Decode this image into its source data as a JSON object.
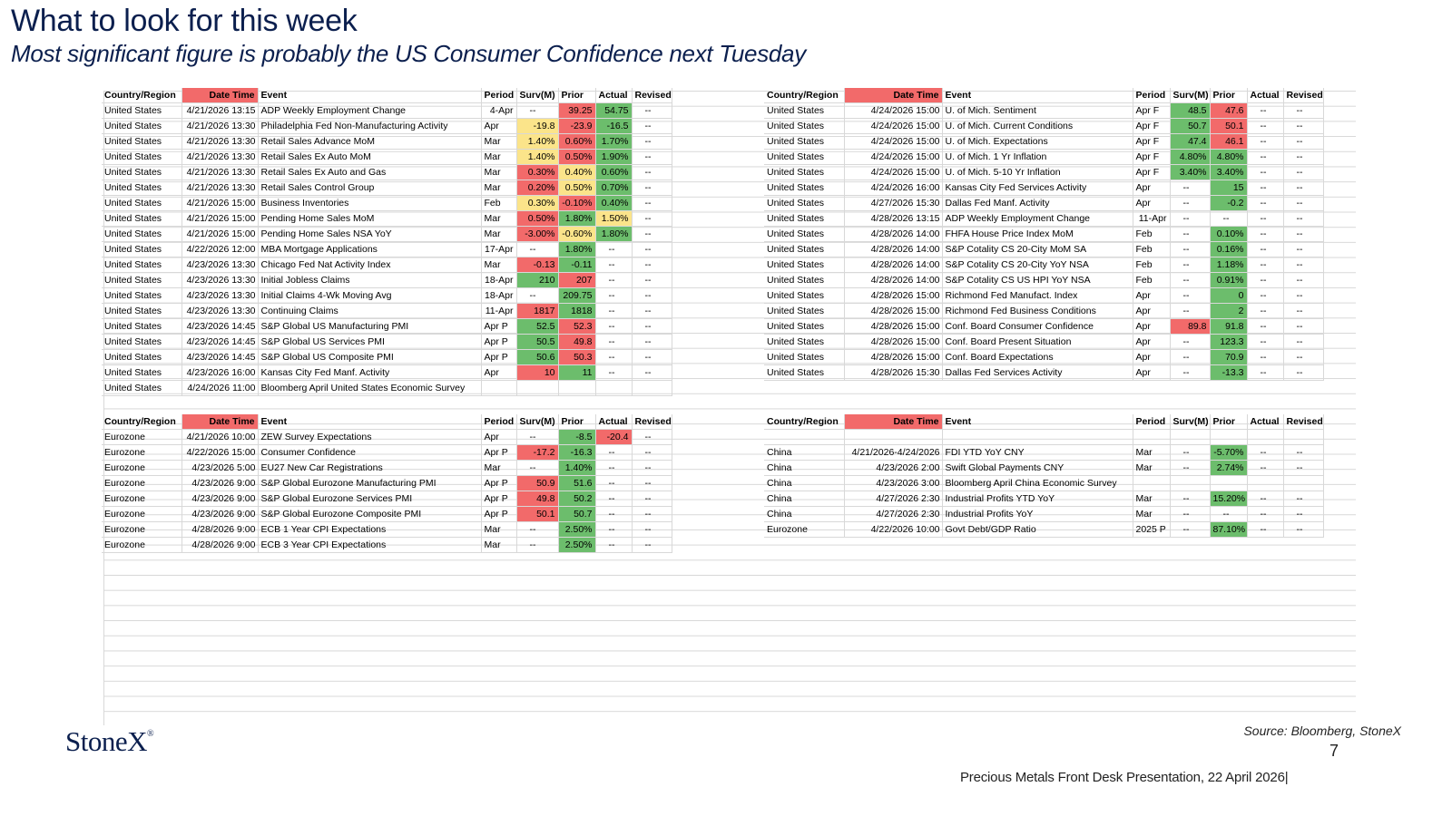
{
  "header": {
    "title": "What to look for this week",
    "subtitle": "Most significant figure is probably the US Consumer Confidence next Tuesday"
  },
  "columns": [
    "Country/Region",
    "Date Time",
    "Event",
    "Period",
    "Surv(M)",
    "Prior",
    "Actual",
    "Revised"
  ],
  "columns_right": [
    "Country/Region",
    "Date Time",
    "Event",
    "Period",
    "Surv(M)",
    "Prior",
    "Actual",
    "Revised"
  ],
  "colors": {
    "green": "#6cbd6c",
    "red": "#f26a6a",
    "yellow": "#fbe48a",
    "navy": "#0b1f4e"
  },
  "tables": {
    "top_left": [
      {
        "country": "United States",
        "dt": "4/21/2026 13:15",
        "event": "ADP Weekly Employment Change",
        "period": "4-Apr",
        "surv": "--",
        "prior": "39.25",
        "actual": "54.75",
        "revised": "--",
        "period_align": "right",
        "sc": "",
        "pc": "r",
        "ac": "g"
      },
      {
        "country": "United States",
        "dt": "4/21/2026 13:30",
        "event": "Philadelphia Fed Non-Manufacturing Activity",
        "period": "Apr",
        "surv": "-19.8",
        "prior": "-23.9",
        "actual": "-16.5",
        "revised": "--",
        "sc": "y",
        "pc": "r",
        "ac": "g"
      },
      {
        "country": "United States",
        "dt": "4/21/2026 13:30",
        "event": "Retail Sales Advance MoM",
        "period": "Mar",
        "surv": "1.40%",
        "prior": "0.60%",
        "actual": "1.70%",
        "revised": "--",
        "sc": "y",
        "pc": "r",
        "ac": "g"
      },
      {
        "country": "United States",
        "dt": "4/21/2026 13:30",
        "event": "Retail Sales Ex Auto MoM",
        "period": "Mar",
        "surv": "1.40%",
        "prior": "0.50%",
        "actual": "1.90%",
        "revised": "--",
        "sc": "y",
        "pc": "r",
        "ac": "g"
      },
      {
        "country": "United States",
        "dt": "4/21/2026 13:30",
        "event": "Retail Sales Ex Auto and Gas",
        "period": "Mar",
        "surv": "0.30%",
        "prior": "0.40%",
        "actual": "0.60%",
        "revised": "--",
        "sc": "r",
        "pc": "y",
        "ac": "g"
      },
      {
        "country": "United States",
        "dt": "4/21/2026 13:30",
        "event": "Retail Sales Control Group",
        "period": "Mar",
        "surv": "0.20%",
        "prior": "0.50%",
        "actual": "0.70%",
        "revised": "--",
        "sc": "r",
        "pc": "y",
        "ac": "g"
      },
      {
        "country": "United States",
        "dt": "4/21/2026 15:00",
        "event": "Business Inventories",
        "period": "Feb",
        "surv": "0.30%",
        "prior": "-0.10%",
        "actual": "0.40%",
        "revised": "--",
        "sc": "y",
        "pc": "r",
        "ac": "g"
      },
      {
        "country": "United States",
        "dt": "4/21/2026 15:00",
        "event": "Pending Home Sales MoM",
        "period": "Mar",
        "surv": "0.50%",
        "prior": "1.80%",
        "actual": "1.50%",
        "revised": "--",
        "sc": "r",
        "pc": "g",
        "ac": "y"
      },
      {
        "country": "United States",
        "dt": "4/21/2026 15:00",
        "event": "Pending Home Sales NSA YoY",
        "period": "Mar",
        "surv": "-3.00%",
        "prior": "-0.60%",
        "actual": "1.80%",
        "revised": "--",
        "sc": "r",
        "pc": "y",
        "ac": "g"
      },
      {
        "country": "United States",
        "dt": "4/22/2026 12:00",
        "event": "MBA Mortgage Applications",
        "period": "17-Apr",
        "surv": "--",
        "prior": "1.80%",
        "actual": "--",
        "revised": "--",
        "period_align": "right",
        "sc": "",
        "pc": "g",
        "ac": ""
      },
      {
        "country": "United States",
        "dt": "4/23/2026 13:30",
        "event": "Chicago Fed Nat Activity Index",
        "period": "Mar",
        "surv": "-0.13",
        "prior": "-0.11",
        "actual": "--",
        "revised": "--",
        "sc": "r",
        "pc": "g",
        "ac": ""
      },
      {
        "country": "United States",
        "dt": "4/23/2026 13:30",
        "event": "Initial Jobless Claims",
        "period": "18-Apr",
        "surv": "210",
        "prior": "207",
        "actual": "--",
        "revised": "--",
        "period_align": "right",
        "sc": "g",
        "pc": "r",
        "ac": ""
      },
      {
        "country": "United States",
        "dt": "4/23/2026 13:30",
        "event": "Initial Claims 4-Wk Moving Avg",
        "period": "18-Apr",
        "surv": "--",
        "prior": "209.75",
        "actual": "--",
        "revised": "--",
        "period_align": "right",
        "sc": "",
        "pc": "g",
        "ac": ""
      },
      {
        "country": "United States",
        "dt": "4/23/2026 13:30",
        "event": "Continuing Claims",
        "period": "11-Apr",
        "surv": "1817",
        "prior": "1818",
        "actual": "--",
        "revised": "--",
        "period_align": "right",
        "sc": "r",
        "pc": "g",
        "ac": ""
      },
      {
        "country": "United States",
        "dt": "4/23/2026 14:45",
        "event": "S&P Global US Manufacturing PMI",
        "period": "Apr P",
        "surv": "52.5",
        "prior": "52.3",
        "actual": "--",
        "revised": "--",
        "sc": "g",
        "pc": "r",
        "ac": ""
      },
      {
        "country": "United States",
        "dt": "4/23/2026 14:45",
        "event": "S&P Global US Services PMI",
        "period": "Apr P",
        "surv": "50.5",
        "prior": "49.8",
        "actual": "--",
        "revised": "--",
        "sc": "g",
        "pc": "r",
        "ac": ""
      },
      {
        "country": "United States",
        "dt": "4/23/2026 14:45",
        "event": "S&P Global US Composite PMI",
        "period": "Apr P",
        "surv": "50.6",
        "prior": "50.3",
        "actual": "--",
        "revised": "--",
        "sc": "g",
        "pc": "r",
        "ac": ""
      },
      {
        "country": "United States",
        "dt": "4/23/2026 16:00",
        "event": "Kansas City Fed Manf. Activity",
        "period": "Apr",
        "surv": "10",
        "prior": "11",
        "actual": "--",
        "revised": "--",
        "sc": "r",
        "pc": "g",
        "ac": ""
      },
      {
        "country": "United States",
        "dt": "4/24/2026 11:00",
        "event": "Bloomberg April United States Economic Survey",
        "period": "",
        "surv": "",
        "prior": "",
        "actual": "",
        "revised": "",
        "sc": "",
        "pc": "",
        "ac": ""
      }
    ],
    "top_right": [
      {
        "country": "United States",
        "dt": "4/24/2026 15:00",
        "event": "U. of Mich. Sentiment",
        "period": "Apr F",
        "surv": "48.5",
        "prior": "47.6",
        "actual": "--",
        "revised": "--",
        "sc": "g",
        "pc": "r",
        "ac": ""
      },
      {
        "country": "United States",
        "dt": "4/24/2026 15:00",
        "event": "U. of Mich. Current Conditions",
        "period": "Apr F",
        "surv": "50.7",
        "prior": "50.1",
        "actual": "--",
        "revised": "--",
        "sc": "g",
        "pc": "r",
        "ac": ""
      },
      {
        "country": "United States",
        "dt": "4/24/2026 15:00",
        "event": "U. of Mich. Expectations",
        "period": "Apr F",
        "surv": "47.4",
        "prior": "46.1",
        "actual": "--",
        "revised": "--",
        "sc": "g",
        "pc": "r",
        "ac": ""
      },
      {
        "country": "United States",
        "dt": "4/24/2026 15:00",
        "event": "U. of Mich. 1 Yr Inflation",
        "period": "Apr F",
        "surv": "4.80%",
        "prior": "4.80%",
        "actual": "--",
        "revised": "--",
        "sc": "g",
        "pc": "g",
        "ac": ""
      },
      {
        "country": "United States",
        "dt": "4/24/2026 15:00",
        "event": "U. of Mich. 5-10 Yr Inflation",
        "period": "Apr F",
        "surv": "3.40%",
        "prior": "3.40%",
        "actual": "--",
        "revised": "--",
        "sc": "g",
        "pc": "g",
        "ac": ""
      },
      {
        "country": "United States",
        "dt": "4/24/2026 16:00",
        "event": "Kansas City Fed Services Activity",
        "period": "Apr",
        "surv": "--",
        "prior": "15",
        "actual": "--",
        "revised": "--",
        "sc": "",
        "pc": "g",
        "ac": ""
      },
      {
        "country": "United States",
        "dt": "4/27/2026 15:30",
        "event": "Dallas Fed Manf. Activity",
        "period": "Apr",
        "surv": "--",
        "prior": "-0.2",
        "actual": "--",
        "revised": "--",
        "sc": "",
        "pc": "g",
        "ac": ""
      },
      {
        "country": "United States",
        "dt": "4/28/2026 13:15",
        "event": "ADP Weekly Employment Change",
        "period": "11-Apr",
        "surv": "--",
        "prior": "--",
        "actual": "--",
        "revised": "--",
        "period_align": "right",
        "sc": "",
        "pc": "",
        "ac": ""
      },
      {
        "country": "United States",
        "dt": "4/28/2026 14:00",
        "event": "FHFA House Price Index MoM",
        "period": "Feb",
        "surv": "--",
        "prior": "0.10%",
        "actual": "--",
        "revised": "--",
        "sc": "",
        "pc": "g",
        "ac": ""
      },
      {
        "country": "United States",
        "dt": "4/28/2026 14:00",
        "event": "S&P Cotality CS 20-City MoM SA",
        "period": "Feb",
        "surv": "--",
        "prior": "0.16%",
        "actual": "--",
        "revised": "--",
        "sc": "",
        "pc": "g",
        "ac": ""
      },
      {
        "country": "United States",
        "dt": "4/28/2026 14:00",
        "event": "S&P Cotality CS 20-City YoY NSA",
        "period": "Feb",
        "surv": "--",
        "prior": "1.18%",
        "actual": "--",
        "revised": "--",
        "sc": "",
        "pc": "g",
        "ac": ""
      },
      {
        "country": "United States",
        "dt": "4/28/2026 14:00",
        "event": "S&P Cotality CS US HPI YoY NSA",
        "period": "Feb",
        "surv": "--",
        "prior": "0.91%",
        "actual": "--",
        "revised": "--",
        "sc": "",
        "pc": "g",
        "ac": ""
      },
      {
        "country": "United States",
        "dt": "4/28/2026 15:00",
        "event": "Richmond Fed Manufact. Index",
        "period": "Apr",
        "surv": "--",
        "prior": "0",
        "actual": "--",
        "revised": "--",
        "sc": "",
        "pc": "g",
        "ac": ""
      },
      {
        "country": "United States",
        "dt": "4/28/2026 15:00",
        "event": "Richmond Fed Business Conditions",
        "period": "Apr",
        "surv": "--",
        "prior": "2",
        "actual": "--",
        "revised": "--",
        "sc": "",
        "pc": "g",
        "ac": ""
      },
      {
        "country": "United States",
        "dt": "4/28/2026 15:00",
        "event": "Conf. Board Consumer Confidence",
        "period": "Apr",
        "surv": "89.8",
        "prior": "91.8",
        "actual": "--",
        "revised": "--",
        "sc": "r",
        "pc": "g",
        "ac": ""
      },
      {
        "country": "United States",
        "dt": "4/28/2026 15:00",
        "event": "Conf. Board Present Situation",
        "period": "Apr",
        "surv": "--",
        "prior": "123.3",
        "actual": "--",
        "revised": "--",
        "sc": "",
        "pc": "g",
        "ac": ""
      },
      {
        "country": "United States",
        "dt": "4/28/2026 15:00",
        "event": "Conf. Board Expectations",
        "period": "Apr",
        "surv": "--",
        "prior": "70.9",
        "actual": "--",
        "revised": "--",
        "sc": "",
        "pc": "g",
        "ac": ""
      },
      {
        "country": "United States",
        "dt": "4/28/2026 15:30",
        "event": "Dallas Fed Services Activity",
        "period": "Apr",
        "surv": "--",
        "prior": "-13.3",
        "actual": "--",
        "revised": "--",
        "sc": "",
        "pc": "g",
        "ac": ""
      }
    ],
    "bottom_left": [
      {
        "country": "Eurozone",
        "dt": "4/21/2026 10:00",
        "event": "ZEW Survey Expectations",
        "period": "Apr",
        "surv": "--",
        "prior": "-8.5",
        "actual": "-20.4",
        "revised": "--",
        "sc": "",
        "pc": "g",
        "ac": "r"
      },
      {
        "country": "Eurozone",
        "dt": "4/22/2026 15:00",
        "event": "Consumer Confidence",
        "period": "Apr P",
        "surv": "-17.2",
        "prior": "-16.3",
        "actual": "--",
        "revised": "--",
        "sc": "r",
        "pc": "g",
        "ac": ""
      },
      {
        "country": "Eurozone",
        "dt": "4/23/2026 5:00",
        "event": "EU27 New Car Registrations",
        "period": "Mar",
        "surv": "--",
        "prior": "1.40%",
        "actual": "--",
        "revised": "--",
        "sc": "",
        "pc": "g",
        "ac": ""
      },
      {
        "country": "Eurozone",
        "dt": "4/23/2026 9:00",
        "event": "S&P Global Eurozone Manufacturing PMI",
        "period": "Apr P",
        "surv": "50.9",
        "prior": "51.6",
        "actual": "--",
        "revised": "--",
        "sc": "r",
        "pc": "g",
        "ac": ""
      },
      {
        "country": "Eurozone",
        "dt": "4/23/2026 9:00",
        "event": "S&P Global Eurozone Services PMI",
        "period": "Apr P",
        "surv": "49.8",
        "prior": "50.2",
        "actual": "--",
        "revised": "--",
        "sc": "r",
        "pc": "g",
        "ac": ""
      },
      {
        "country": "Eurozone",
        "dt": "4/23/2026 9:00",
        "event": "S&P Global Eurozone Composite PMI",
        "period": "Apr P",
        "surv": "50.1",
        "prior": "50.7",
        "actual": "--",
        "revised": "--",
        "sc": "r",
        "pc": "g",
        "ac": ""
      },
      {
        "country": "Eurozone",
        "dt": "4/28/2026 9:00",
        "event": "ECB 1 Year CPI Expectations",
        "period": "Mar",
        "surv": "--",
        "prior": "2.50%",
        "actual": "--",
        "revised": "--",
        "sc": "",
        "pc": "g",
        "ac": ""
      },
      {
        "country": "Eurozone",
        "dt": "4/28/2026 9:00",
        "event": "ECB 3 Year CPI Expectations",
        "period": "Mar",
        "surv": "--",
        "prior": "2.50%",
        "actual": "--",
        "revised": "--",
        "sc": "",
        "pc": "g",
        "ac": ""
      }
    ],
    "bottom_right": [
      {
        "country": "",
        "dt": "",
        "event": "",
        "period": "",
        "surv": "",
        "prior": "",
        "actual": "",
        "revised": "",
        "sc": "",
        "pc": "",
        "ac": ""
      },
      {
        "country": "China",
        "dt": "4/21/2026-4/24/2026",
        "event": "FDI YTD YoY CNY",
        "period": "Mar",
        "surv": "--",
        "prior": "-5.70%",
        "actual": "--",
        "revised": "--",
        "sc": "",
        "pc": "g",
        "ac": ""
      },
      {
        "country": "China",
        "dt": "4/23/2026 2:00",
        "event": "Swift Global Payments CNY",
        "period": "Mar",
        "surv": "--",
        "prior": "2.74%",
        "actual": "--",
        "revised": "--",
        "sc": "",
        "pc": "g",
        "ac": ""
      },
      {
        "country": "China",
        "dt": "4/23/2026 3:00",
        "event": "Bloomberg April China Economic Survey",
        "period": "",
        "surv": "",
        "prior": "",
        "actual": "",
        "revised": "",
        "sc": "",
        "pc": "",
        "ac": ""
      },
      {
        "country": "China",
        "dt": "4/27/2026 2:30",
        "event": "Industrial Profits YTD YoY",
        "period": "Mar",
        "surv": "--",
        "prior": "15.20%",
        "actual": "--",
        "revised": "--",
        "sc": "",
        "pc": "g",
        "ac": ""
      },
      {
        "country": "China",
        "dt": "4/27/2026 2:30",
        "event": "Industrial Profits YoY",
        "period": "Mar",
        "surv": "--",
        "prior": "--",
        "actual": "--",
        "revised": "--",
        "sc": "",
        "pc": "",
        "ac": ""
      },
      {
        "country": "Eurozone",
        "dt": "4/22/2026 10:00",
        "event": "Govt Debt/GDP Ratio",
        "period": "2025 P",
        "surv": "--",
        "prior": "87.10%",
        "actual": "--",
        "revised": "--",
        "sc": "",
        "pc": "g",
        "ac": ""
      }
    ]
  },
  "footer": {
    "logo": "StoneX",
    "logo_mark": "®",
    "source": "Source: Bloomberg, StoneX",
    "page_number": "7",
    "presentation": "Precious Metals Front Desk Presentation, 22 April 2026|"
  }
}
